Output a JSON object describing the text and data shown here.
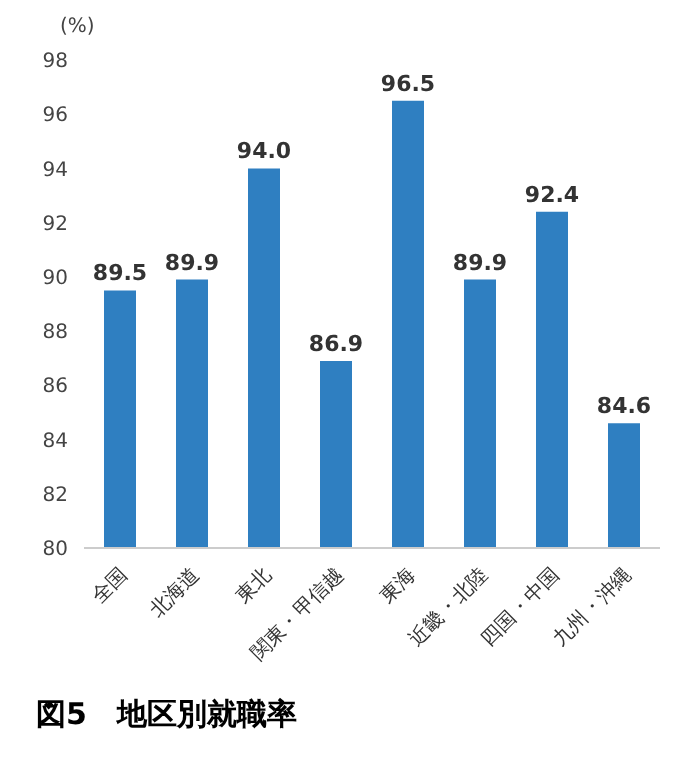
{
  "chart_data": {
    "type": "bar",
    "title": "図5　地区別就職率",
    "ylabel": "(%)",
    "categories": [
      "全国",
      "北海道",
      "東北",
      "関東・甲信越",
      "東海",
      "近畿・北陸",
      "四国・中国",
      "九州・沖縄"
    ],
    "values": [
      89.5,
      89.9,
      94.0,
      86.9,
      96.5,
      89.9,
      92.4,
      84.6
    ],
    "value_labels": [
      "89.5",
      "89.9",
      "94.0",
      "86.9",
      "96.5",
      "89.9",
      "92.4",
      "84.6"
    ],
    "color": "#2f7fc1",
    "ylim": [
      80,
      98
    ],
    "yticks": [
      80,
      82,
      84,
      86,
      88,
      90,
      92,
      94,
      96,
      98
    ],
    "grid": false
  }
}
